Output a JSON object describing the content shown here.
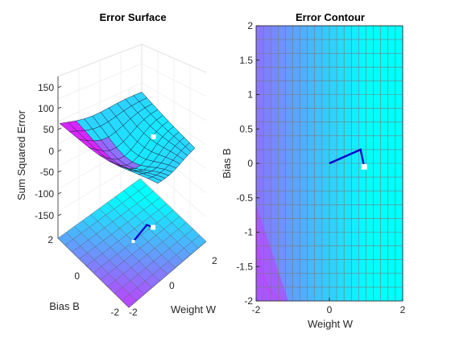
{
  "chart_data": [
    {
      "id": "surface",
      "type": "surface",
      "title": "Error Surface",
      "xlabel": "Weight W",
      "ylabel": "Bias B",
      "zlabel": "Sum Squared Error",
      "xlim": [
        -2,
        2
      ],
      "ylim": [
        -2,
        2
      ],
      "zlim": [
        -180,
        160
      ],
      "x_ticks": [
        "-2",
        "0",
        "2"
      ],
      "y_ticks": [
        "-2",
        "0",
        "2"
      ],
      "z_ticks": [
        "150",
        "100",
        "50",
        "0",
        "-50",
        "-100",
        "-150"
      ],
      "grid": true,
      "colormap": "cool",
      "path": {
        "color": "#0000cc",
        "points": [
          [
            0,
            0
          ],
          [
            0.85,
            0.2
          ],
          [
            0.95,
            -0.05
          ]
        ],
        "end_marker": "#ffffff"
      }
    },
    {
      "id": "contour",
      "type": "contour",
      "title": "Error Contour",
      "xlabel": "Weight W",
      "ylabel": "Bias B",
      "xlim": [
        -2,
        2
      ],
      "ylim": [
        -2,
        2
      ],
      "x_ticks": [
        "-2",
        "0",
        "2"
      ],
      "y_ticks": [
        "2",
        "1.5",
        "1",
        "0.5",
        "0",
        "-0.5",
        "-1",
        "-1.5",
        "-2"
      ],
      "grid": true,
      "colormap": "cool",
      "path": {
        "color": "#0000cc",
        "points": [
          [
            0,
            0
          ],
          [
            0.85,
            0.2
          ],
          [
            0.95,
            -0.05
          ]
        ],
        "end_marker": "#ffffff"
      }
    }
  ]
}
